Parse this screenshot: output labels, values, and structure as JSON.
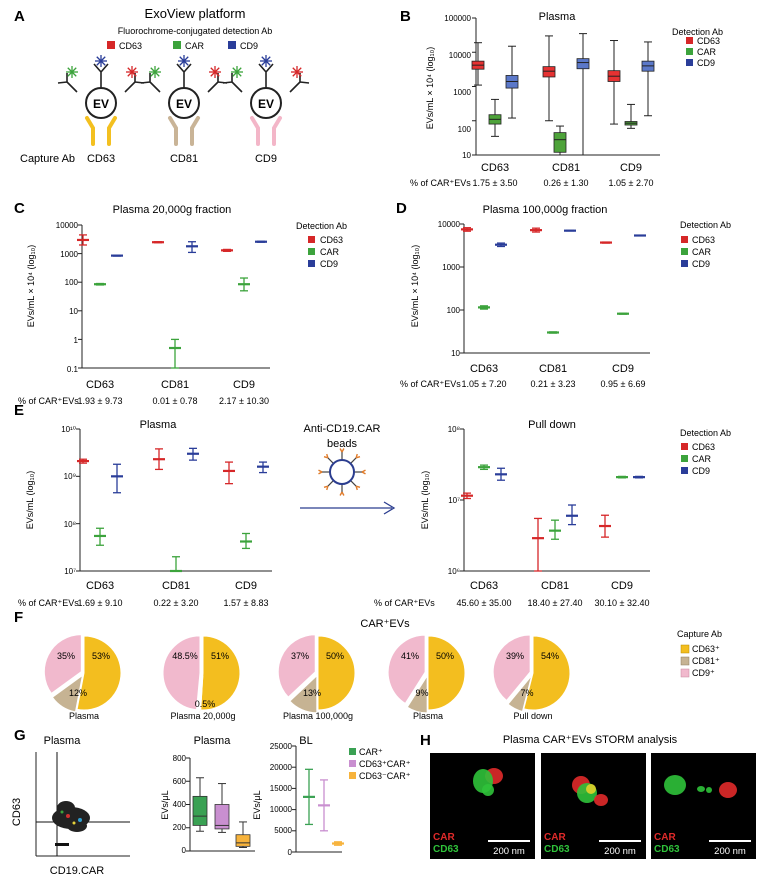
{
  "panels": {
    "A": {
      "letter": "A",
      "title": "ExoView platform",
      "subtitle": "Fluorochrome-conjugated detection Ab",
      "legend": [
        "CD63",
        "CAR",
        "CD9"
      ],
      "colors": [
        "#d62728",
        "#3ca33c",
        "#2a3d99"
      ],
      "capture_label": "Capture Ab",
      "captures": [
        "CD63",
        "CD81",
        "CD9"
      ],
      "capture_colors": [
        "#f3c020",
        "#c9b497",
        "#f3b6c8"
      ],
      "ev_label": "EV"
    },
    "B": {
      "letter": "B",
      "title": "Plasma",
      "ylabel": "EVs/mL × 10⁴ (log₁₀)",
      "yticks": [
        "100000",
        "10000",
        "1000",
        "100",
        "10"
      ],
      "legend_title": "Detection Ab",
      "legend": [
        "CD63",
        "CAR",
        "CD9"
      ],
      "groups": [
        "CD63",
        "CD81",
        "CD9"
      ],
      "pct_label": "% of CAR⁺EVs",
      "pct": [
        "1.75 ± 3.50",
        "0.26 ± 1.30",
        "1.05 ± 2.70"
      ]
    },
    "C": {
      "letter": "C",
      "title": "Plasma 20,000g fraction",
      "ylabel": "EVs/mL × 10⁴ (log₁₀)",
      "yticks": [
        "10000",
        "1000",
        "100",
        "10",
        "1",
        "0.1"
      ],
      "legend_title": "Detection Ab",
      "legend": [
        "CD63",
        "CAR",
        "CD9"
      ],
      "groups": [
        "CD63",
        "CD81",
        "CD9"
      ],
      "pct_label": "% of CAR⁺EVs",
      "pct": [
        "1.93 ± 9.73",
        "0.01 ± 0.78",
        "2.17 ± 10.30"
      ]
    },
    "D": {
      "letter": "D",
      "title": "Plasma 100,000g fraction",
      "ylabel": "EVs/mL × 10⁴ (log₁₀)",
      "yticks": [
        "10000",
        "1000",
        "100",
        "10"
      ],
      "legend_title": "Detection Ab",
      "legend": [
        "CD63",
        "CAR",
        "CD9"
      ],
      "groups": [
        "CD63",
        "CD81",
        "CD9"
      ],
      "pct_label": "% of CAR⁺EVs",
      "pct": [
        "1.05 ± 7.20",
        "0.21 ± 3.23",
        "0.95 ± 6.69"
      ]
    },
    "E": {
      "letter": "E",
      "left_title": "Plasma",
      "right_title": "Pull down",
      "ylabel": "EVs/mL (log₁₀)",
      "left_yticks": [
        "10¹⁰",
        "10⁹",
        "10⁸",
        "10⁷"
      ],
      "right_yticks": [
        "10⁸",
        "10⁷",
        "10⁶"
      ],
      "arrow_label_1": "Anti-CD19.CAR",
      "arrow_label_2": "beads",
      "legend_title": "Detection Ab",
      "legend": [
        "CD63",
        "CAR",
        "CD9"
      ],
      "groups": [
        "CD63",
        "CD81",
        "CD9"
      ],
      "pct_label": "% of CAR⁺EVs",
      "left_pct": [
        "1.69 ± 9.10",
        "0.22 ± 3.20",
        "1.57 ± 8.83"
      ],
      "right_pct": [
        "45.60 ± 35.00",
        "18.40 ± 27.40",
        "30.10 ± 32.40"
      ]
    },
    "F": {
      "letter": "F",
      "title": "CAR⁺EVs",
      "legend_title": "Capture Ab",
      "legend": [
        "CD63⁺",
        "CD81⁺",
        "CD9⁺"
      ],
      "pies": [
        {
          "label": "Plasma",
          "cd63": 53,
          "cd81": 12,
          "cd9": 35,
          "t63": "53%",
          "t81": "12%",
          "t9": "35%"
        },
        {
          "label": "Plasma 20,000g",
          "cd63": 51,
          "cd81": 0.5,
          "cd9": 48.5,
          "t63": "51%",
          "t81": "0.5%",
          "t9": "48.5%"
        },
        {
          "label": "Plasma 100,000g",
          "cd63": 50,
          "cd81": 13,
          "cd9": 37,
          "t63": "50%",
          "t81": "13%",
          "t9": "37%"
        },
        {
          "label": "Plasma",
          "cd63": 50,
          "cd81": 9,
          "cd9": 41,
          "t63": "50%",
          "t81": "9%",
          "t9": "41%"
        },
        {
          "label": "Pull down",
          "cd63": 54,
          "cd81": 7,
          "cd9": 39,
          "t63": "54%",
          "t81": "7%",
          "t9": "39%"
        }
      ]
    },
    "G": {
      "letter": "G",
      "flow_title": "Plasma",
      "flow_xlabel": "CD19.CAR",
      "flow_ylabel": "CD63",
      "box_title": "Plasma",
      "box_ylabel": "EVs/μL",
      "box_yticks": [
        "800",
        "600",
        "400",
        "200",
        "0"
      ],
      "bl_title": "BL",
      "bl_ylabel": "EVs/μL",
      "bl_yticks": [
        "25000",
        "20000",
        "15000",
        "10000",
        "5000",
        "0"
      ],
      "legend": [
        "CAR⁺",
        "CD63⁺CAR⁺",
        "CD63⁻CAR⁺"
      ]
    },
    "H": {
      "letter": "H",
      "title": "Plasma CAR⁺EVs STORM analysis",
      "car_label": "CAR",
      "cd63_label": "CD63",
      "scale_label": "200 nm"
    }
  },
  "chart_data": [
    {
      "type": "box",
      "id": "B",
      "title": "Plasma",
      "ylabel": "EVs/mL × 10⁴ (log₁₀)",
      "yscale": "log",
      "ylim": [
        10,
        100000
      ],
      "categories": [
        "CD63",
        "CD81",
        "CD9"
      ],
      "series": [
        {
          "name": "CD63",
          "color": "#d62728",
          "boxes": [
            [
              1100,
              3200,
              4200,
              5500,
              19000
            ],
            [
              100,
              1900,
              2800,
              3800,
              30000
            ],
            [
              80,
              1400,
              2000,
              2900,
              22000
            ]
          ]
        },
        {
          "name": "CAR",
          "color": "#3ca33c",
          "boxes": [
            [
              35,
              80,
              110,
              150,
              420
            ],
            [
              10,
              12,
              28,
              45,
              70
            ],
            [
              60,
              75,
              85,
              95,
              300
            ]
          ]
        },
        {
          "name": "CD9",
          "color": "#2a3d99",
          "boxes": [
            [
              120,
              900,
              1400,
              2100,
              15000
            ],
            [
              10,
              3300,
              5000,
              6500,
              35000
            ],
            [
              140,
              2800,
              4000,
              5500,
              20000
            ]
          ]
        }
      ]
    },
    {
      "type": "errorbar",
      "id": "C",
      "title": "Plasma 20,000g fraction",
      "yscale": "log",
      "ylim": [
        0.1,
        10000
      ],
      "categories": [
        "CD63",
        "CD81",
        "CD9"
      ],
      "series": [
        {
          "name": "CD63",
          "color": "#d62728",
          "values": [
            [
              3000,
              2000,
              4500
            ],
            [
              2500,
              2400,
              2600
            ],
            [
              1300,
              1200,
              1400
            ]
          ]
        },
        {
          "name": "CAR",
          "color": "#3ca33c",
          "values": [
            [
              85,
              80,
              90
            ],
            [
              0.5,
              0.1,
              1.0
            ],
            [
              85,
              50,
              140
            ]
          ]
        },
        {
          "name": "CD9",
          "color": "#2a3d99",
          "values": [
            [
              850,
              820,
              880
            ],
            [
              1800,
              1100,
              2600
            ],
            [
              2600,
              2500,
              2700
            ]
          ]
        }
      ]
    },
    {
      "type": "errorbar",
      "id": "D",
      "title": "Plasma 100,000g fraction",
      "yscale": "log",
      "ylim": [
        10,
        10000
      ],
      "categories": [
        "CD63",
        "CD81",
        "CD9"
      ],
      "series": [
        {
          "name": "CD63",
          "color": "#d62728",
          "values": [
            [
              7500,
              6800,
              8200
            ],
            [
              7200,
              6500,
              8000
            ],
            [
              3700,
              3600,
              3800
            ]
          ]
        },
        {
          "name": "CAR",
          "color": "#3ca33c",
          "values": [
            [
              115,
              105,
              125
            ],
            [
              30,
              29,
              31
            ],
            [
              82,
              80,
              84
            ]
          ]
        },
        {
          "name": "CD9",
          "color": "#2a3d99",
          "values": [
            [
              3300,
              3000,
              3600
            ],
            [
              7000,
              6900,
              7100
            ],
            [
              5400,
              5300,
              5500
            ]
          ]
        }
      ]
    },
    {
      "type": "errorbar",
      "id": "E-plasma",
      "title": "Plasma",
      "yscale": "log",
      "ylim": [
        10000000,
        10000000000
      ],
      "categories": [
        "CD63",
        "CD81",
        "CD9"
      ],
      "series": [
        {
          "name": "CD63",
          "color": "#d62728",
          "values": [
            [
              2100000000,
              1900000000,
              2300000000
            ],
            [
              2300000000,
              1400000000,
              3800000000
            ],
            [
              1300000000,
              700000000,
              2000000000
            ]
          ]
        },
        {
          "name": "CAR",
          "color": "#3ca33c",
          "values": [
            [
              55000000,
              35000000,
              80000000
            ],
            [
              10000000,
              10000000,
              20000000
            ],
            [
              42000000,
              30000000,
              62000000
            ]
          ]
        },
        {
          "name": "CD9",
          "color": "#2a3d99",
          "values": [
            [
              1000000000,
              450000000,
              1800000000
            ],
            [
              3000000000,
              2200000000,
              3900000000
            ],
            [
              1600000000,
              1200000000,
              2000000000
            ]
          ]
        }
      ]
    },
    {
      "type": "errorbar",
      "id": "E-pulldown",
      "title": "Pull down",
      "yscale": "log",
      "ylim": [
        1000000,
        100000000
      ],
      "categories": [
        "CD63",
        "CD81",
        "CD9"
      ],
      "series": [
        {
          "name": "CD63",
          "color": "#d62728",
          "values": [
            [
              11500000,
              10500000,
              12500000
            ],
            [
              2900000,
              1000000,
              5500000
            ],
            [
              4300000,
              3000000,
              6100000
            ]
          ]
        },
        {
          "name": "CAR",
          "color": "#3ca33c",
          "values": [
            [
              29000000,
              27000000,
              31000000
            ],
            [
              3700000,
              2800000,
              5200000
            ],
            [
              21000000,
              20500000,
              21500000
            ]
          ]
        },
        {
          "name": "CD9",
          "color": "#2a3d99",
          "values": [
            [
              23000000,
              19000000,
              28000000
            ],
            [
              6000000,
              4500000,
              8500000
            ],
            [
              21000000,
              20500000,
              21500000
            ]
          ]
        }
      ]
    },
    {
      "type": "box",
      "id": "G-plasma",
      "title": "Plasma",
      "ylabel": "EVs/μL",
      "ylim": [
        0,
        800
      ],
      "categories": [
        "CAR⁺",
        "CD63⁺CAR⁺",
        "CD63⁻CAR⁺"
      ],
      "series": [
        {
          "name": "CAR⁺",
          "color": "#3aa153",
          "box": [
            170,
            220,
            300,
            470,
            630
          ]
        },
        {
          "name": "CD63⁺CAR⁺",
          "color": "#c98fd0",
          "box": [
            160,
            190,
            220,
            400,
            580
          ]
        },
        {
          "name": "CD63⁻CAR⁺",
          "color": "#f7b33c",
          "box": [
            30,
            40,
            70,
            140,
            250
          ]
        }
      ]
    },
    {
      "type": "errorbar",
      "id": "G-BL",
      "title": "BL",
      "ylabel": "EVs/μL",
      "ylim": [
        0,
        25000
      ],
      "categories": [
        "CAR⁺",
        "CD63⁺CAR⁺",
        "CD63⁻CAR⁺"
      ],
      "series": [
        {
          "name": "CAR⁺",
          "color": "#3aa153",
          "values": [
            [
              13000,
              6500,
              19500
            ]
          ]
        },
        {
          "name": "CD63⁺CAR⁺",
          "color": "#c98fd0",
          "values": [
            [
              11000,
              5000,
              17000
            ]
          ]
        },
        {
          "name": "CD63⁻CAR⁺",
          "color": "#f7b33c",
          "values": [
            [
              2000,
              1600,
              2400
            ]
          ]
        }
      ]
    }
  ]
}
